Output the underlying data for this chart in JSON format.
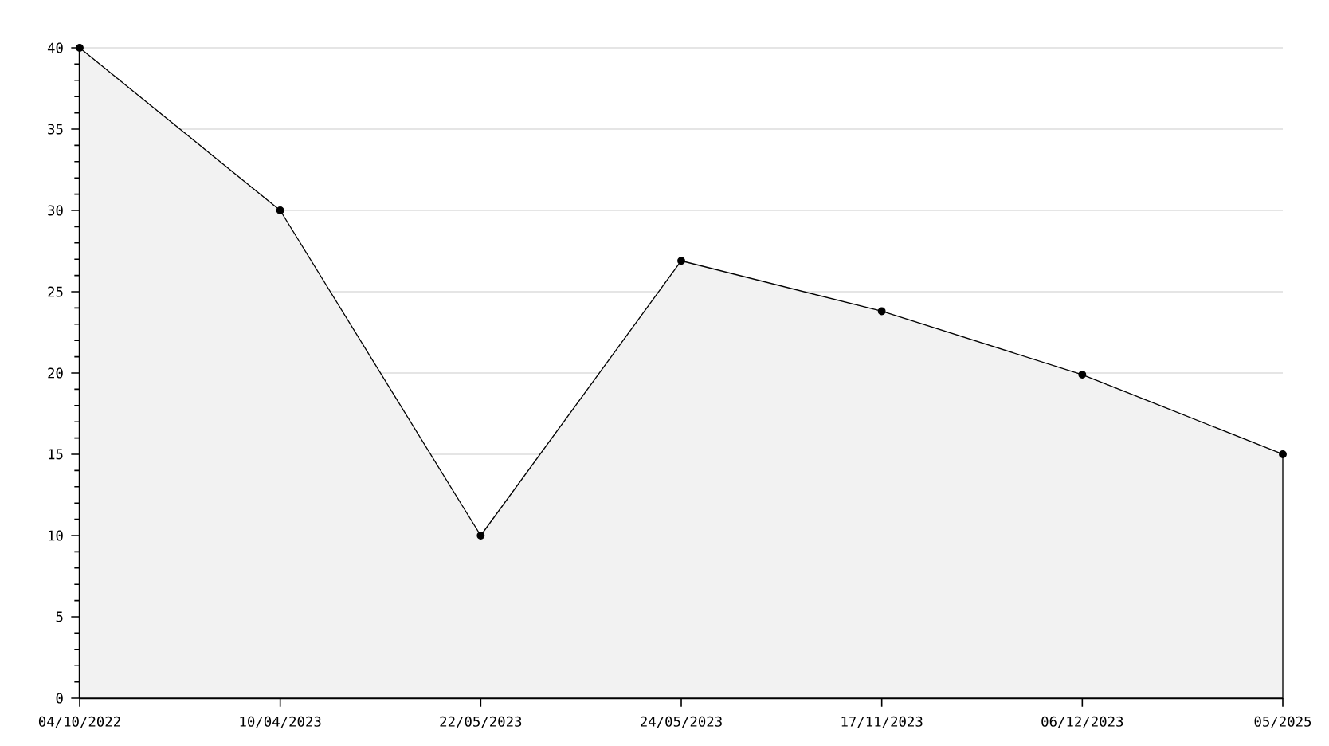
{
  "chart_data": {
    "type": "area",
    "categories": [
      "04/10/2022",
      "10/04/2023",
      "22/05/2023",
      "24/05/2023",
      "17/11/2023",
      "06/12/2023",
      "05/2025"
    ],
    "values": [
      40,
      30,
      10,
      26.9,
      23.8,
      19.9,
      15
    ],
    "color": "#f2f2f2",
    "ylim": [
      0,
      40
    ],
    "yticks": [
      0,
      5,
      10,
      15,
      20,
      25,
      30,
      35,
      40
    ],
    "grid": "y",
    "marker": "circle",
    "line_style": "solid"
  }
}
